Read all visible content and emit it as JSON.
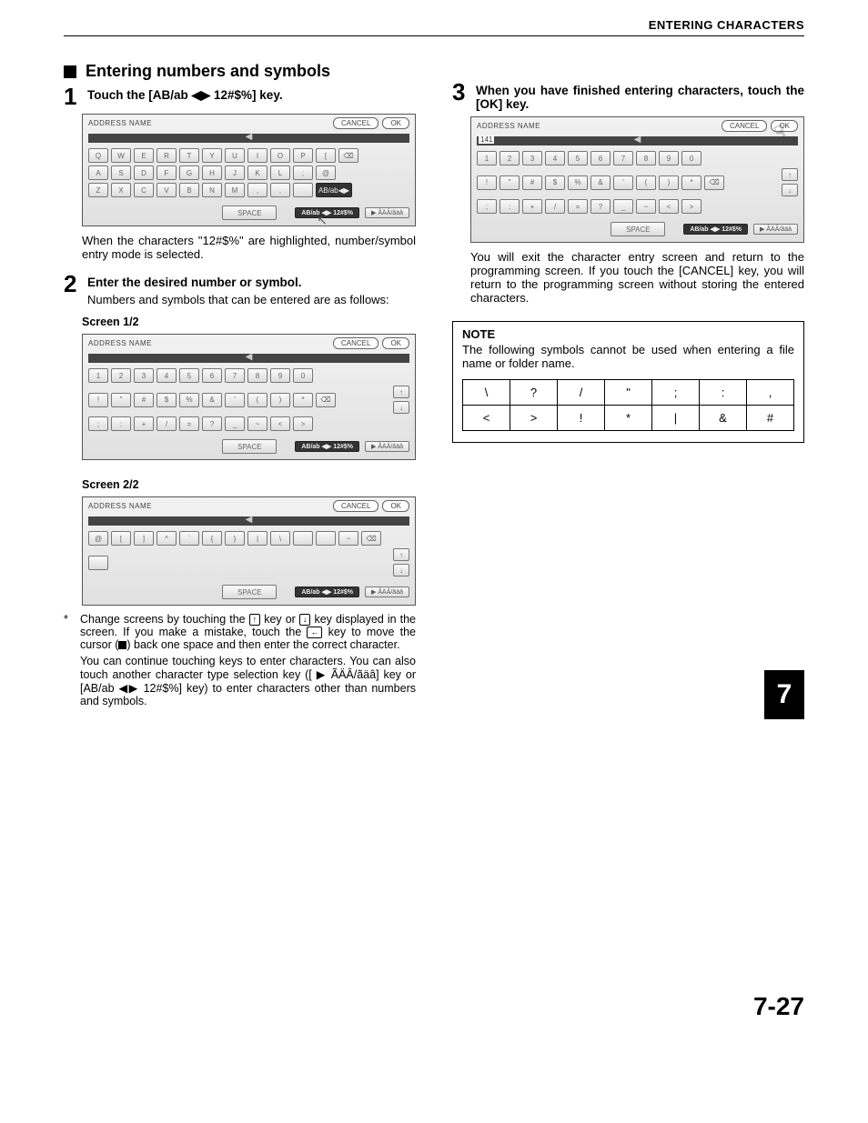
{
  "header": {
    "title": "ENTERING CHARACTERS"
  },
  "section": {
    "title": "Entering numbers and symbols"
  },
  "steps": {
    "s1": {
      "num": "1",
      "head_pre": "Touch the [AB/ab ",
      "head_post": " 12#$%] key.",
      "caption": "When the characters \"12#$%\" are highlighted, number/symbol entry mode is selected."
    },
    "s2": {
      "num": "2",
      "head": "Enter the desired number or symbol.",
      "text": "Numbers and symbols that can be entered are as follows:",
      "screen1_label": "Screen 1/2",
      "screen2_label": "Screen 2/2"
    },
    "s3": {
      "num": "3",
      "head": "When you have finished entering characters, touch the [OK] key.",
      "text": "You will exit the character entry screen and return to the programming screen. If you touch the [CANCEL] key, you will return to the programming screen without storing the entered characters."
    }
  },
  "screenshots": {
    "title": "ADDRESS NAME",
    "cancel": "CANCEL",
    "ok": "OK",
    "space": "SPACE",
    "tab_abab": "AB/ab",
    "tab_num": "12#$%",
    "tab_accent": "▶ ÃÄÂ/ãäâ",
    "qwerty_r1": [
      "Q",
      "W",
      "E",
      "R",
      "T",
      "Y",
      "U",
      "I",
      "O",
      "P",
      "["
    ],
    "qwerty_r2": [
      "A",
      "S",
      "D",
      "F",
      "G",
      "H",
      "J",
      "K",
      "L",
      ";",
      "@"
    ],
    "qwerty_r3": [
      "Z",
      "X",
      "C",
      "V",
      "B",
      "N",
      "M",
      ",",
      ".",
      " "
    ],
    "num_r1": [
      "1",
      "2",
      "3",
      "4",
      "5",
      "6",
      "7",
      "8",
      "9",
      "0"
    ],
    "num_r2": [
      "!",
      "\"",
      "#",
      "$",
      "%",
      "&",
      "'",
      "(",
      ")",
      "*"
    ],
    "num_r3": [
      ";",
      ":",
      "+",
      "/",
      "=",
      "?",
      "_",
      "~",
      "<",
      ">"
    ],
    "sym2_r1": [
      "@",
      "[",
      "]",
      "^",
      "`",
      "{",
      "}",
      "|",
      "\\",
      " ",
      " ",
      "~"
    ],
    "ok_entered": "141"
  },
  "footnote": {
    "p1_a": "Change screens by touching the ",
    "p1_b": " key or ",
    "p1_c": " key displayed in the screen. If you make a mistake, touch the ",
    "p1_d": " key to move the cursor (",
    "p1_e": ") back one space and then enter the correct character.",
    "p2": "You can continue touching keys to enter characters. You can also touch another character type selection key ([ ▶ ÃÄÂ/ãäâ] key or [AB/ab ◀▶ 12#$%] key) to enter characters other than numbers and symbols."
  },
  "note": {
    "title": "NOTE",
    "text": "The following symbols cannot be used when entering a file name or folder name.",
    "row1": [
      "\\",
      "?",
      "/",
      "\"",
      ";",
      ":",
      ","
    ],
    "row2": [
      "<",
      ">",
      "!",
      "*",
      "|",
      "&",
      "#"
    ]
  },
  "chapter": "7",
  "page_number": "7-27"
}
